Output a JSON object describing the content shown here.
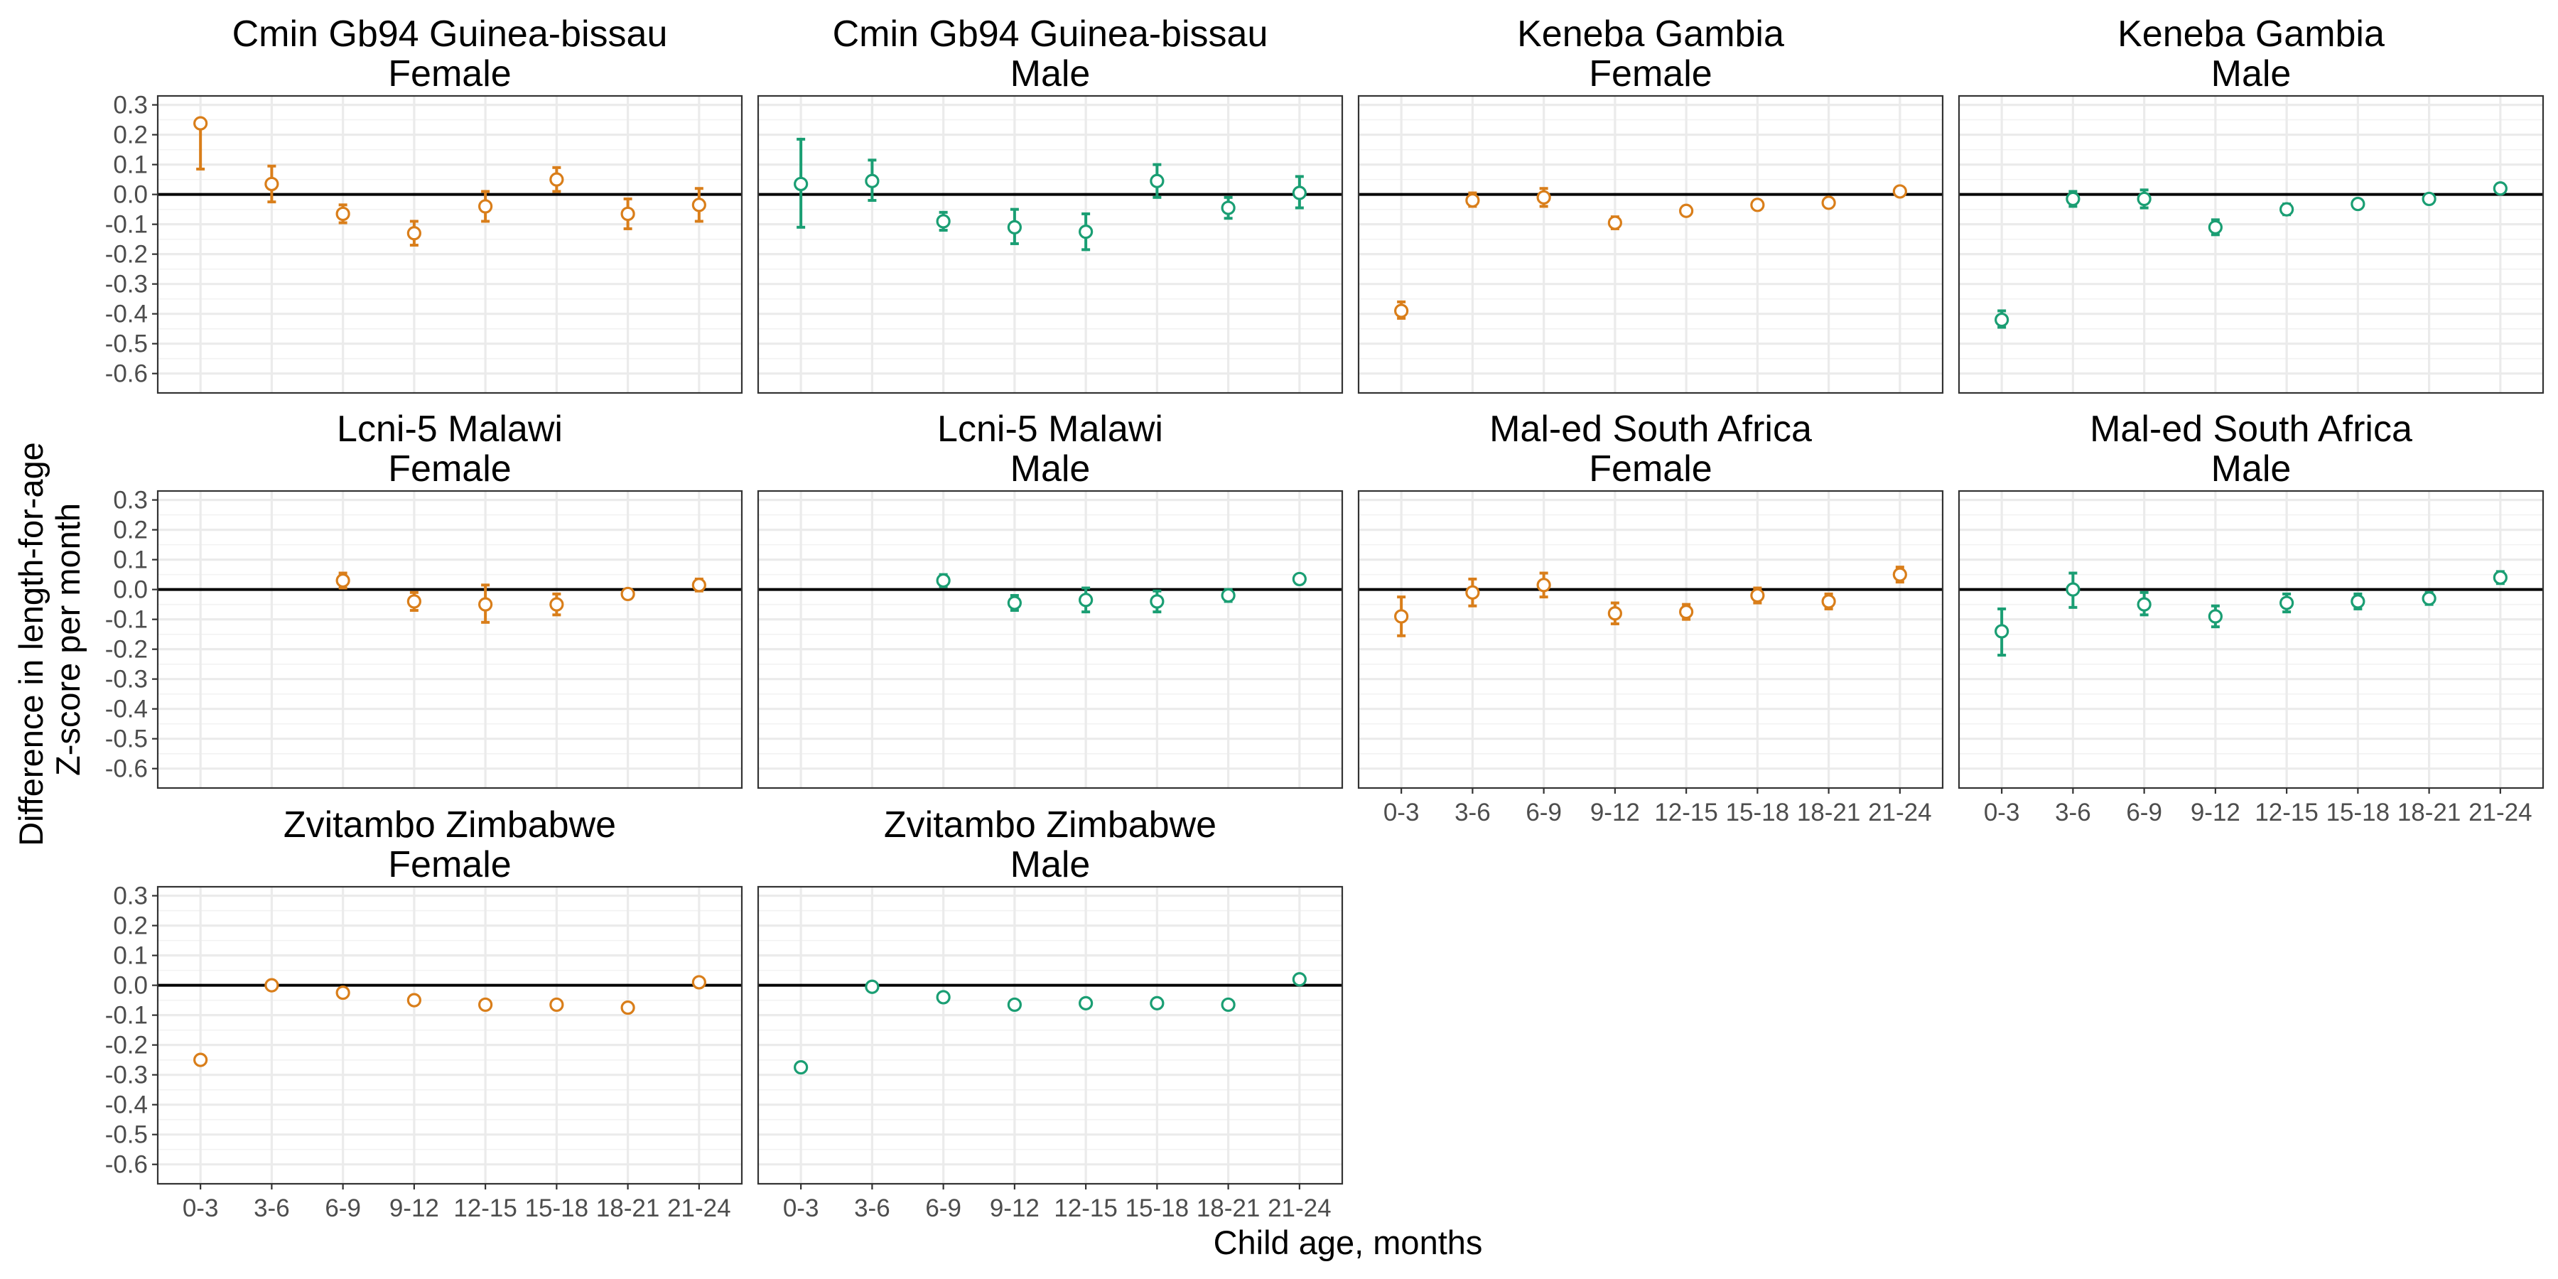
{
  "chart_data": {
    "type": "scatter",
    "subtype": "point-with-errorbars, faceted",
    "xlabel": "Child age, months",
    "ylabel_lines": [
      "Difference in length-for-age",
      "Z-score per month"
    ],
    "categories": [
      "0-3",
      "3-6",
      "6-9",
      "9-12",
      "12-15",
      "15-18",
      "18-21",
      "21-24"
    ],
    "y_ticks": [
      "0.3",
      "0.2",
      "0.1",
      "0.0",
      "-0.1",
      "-0.2",
      "-0.3",
      "-0.4",
      "-0.5",
      "-0.6"
    ],
    "y_tick_values": [
      0.3,
      0.2,
      0.1,
      0.0,
      -0.1,
      -0.2,
      -0.3,
      -0.4,
      -0.5,
      -0.6
    ],
    "ylim": [
      -0.665,
      0.33
    ],
    "reference_line": 0,
    "grid": true,
    "colors": {
      "female": "#D97E1A",
      "male": "#1A9E73"
    },
    "panels": [
      {
        "title": [
          "Cmin Gb94 Guinea-bissau",
          "Female"
        ],
        "sex": "female",
        "points": [
          {
            "x": "0-3",
            "y": 0.238,
            "lo": 0.085,
            "hi": 0.238
          },
          {
            "x": "3-6",
            "y": 0.035,
            "lo": -0.025,
            "hi": 0.095
          },
          {
            "x": "6-9",
            "y": -0.065,
            "lo": -0.095,
            "hi": -0.035
          },
          {
            "x": "9-12",
            "y": -0.13,
            "lo": -0.17,
            "hi": -0.09
          },
          {
            "x": "12-15",
            "y": -0.04,
            "lo": -0.09,
            "hi": 0.01
          },
          {
            "x": "15-18",
            "y": 0.05,
            "lo": 0.01,
            "hi": 0.09
          },
          {
            "x": "18-21",
            "y": -0.065,
            "lo": -0.115,
            "hi": -0.015
          },
          {
            "x": "21-24",
            "y": -0.035,
            "lo": -0.09,
            "hi": 0.02
          }
        ]
      },
      {
        "title": [
          "Cmin Gb94 Guinea-bissau",
          "Male"
        ],
        "sex": "male",
        "points": [
          {
            "x": "0-3",
            "y": 0.035,
            "lo": -0.11,
            "hi": 0.185
          },
          {
            "x": "3-6",
            "y": 0.045,
            "lo": -0.02,
            "hi": 0.115
          },
          {
            "x": "6-9",
            "y": -0.09,
            "lo": -0.12,
            "hi": -0.06
          },
          {
            "x": "9-12",
            "y": -0.11,
            "lo": -0.165,
            "hi": -0.05
          },
          {
            "x": "12-15",
            "y": -0.125,
            "lo": -0.185,
            "hi": -0.065
          },
          {
            "x": "15-18",
            "y": 0.045,
            "lo": -0.01,
            "hi": 0.1
          },
          {
            "x": "18-21",
            "y": -0.045,
            "lo": -0.08,
            "hi": -0.01
          },
          {
            "x": "21-24",
            "y": 0.005,
            "lo": -0.045,
            "hi": 0.06
          }
        ]
      },
      {
        "title": [
          "Keneba Gambia",
          "Female"
        ],
        "sex": "female",
        "points": [
          {
            "x": "0-3",
            "y": -0.39,
            "lo": -0.415,
            "hi": -0.36
          },
          {
            "x": "3-6",
            "y": -0.02,
            "lo": -0.04,
            "hi": 0.005
          },
          {
            "x": "6-9",
            "y": -0.01,
            "lo": -0.04,
            "hi": 0.02
          },
          {
            "x": "9-12",
            "y": -0.095,
            "lo": -0.115,
            "hi": -0.075
          },
          {
            "x": "12-15",
            "y": -0.055,
            "lo": -0.07,
            "hi": -0.04
          },
          {
            "x": "15-18",
            "y": -0.035,
            "lo": -0.048,
            "hi": -0.022
          },
          {
            "x": "18-21",
            "y": -0.028,
            "lo": -0.04,
            "hi": -0.016
          },
          {
            "x": "21-24",
            "y": 0.01,
            "lo": -0.003,
            "hi": 0.023
          }
        ]
      },
      {
        "title": [
          "Keneba Gambia",
          "Male"
        ],
        "sex": "male",
        "points": [
          {
            "x": "0-3",
            "y": -0.42,
            "lo": -0.445,
            "hi": -0.39
          },
          {
            "x": "3-6",
            "y": -0.015,
            "lo": -0.04,
            "hi": 0.01
          },
          {
            "x": "6-9",
            "y": -0.015,
            "lo": -0.045,
            "hi": 0.015
          },
          {
            "x": "9-12",
            "y": -0.11,
            "lo": -0.135,
            "hi": -0.085
          },
          {
            "x": "12-15",
            "y": -0.05,
            "lo": -0.068,
            "hi": -0.032
          },
          {
            "x": "15-18",
            "y": -0.032,
            "lo": -0.047,
            "hi": -0.017
          },
          {
            "x": "18-21",
            "y": -0.015,
            "lo": -0.028,
            "hi": -0.002
          },
          {
            "x": "21-24",
            "y": 0.02,
            "lo": 0.005,
            "hi": 0.035
          }
        ]
      },
      {
        "title": [
          "Lcni-5 Malawi",
          "Female"
        ],
        "sex": "female",
        "points": [
          {
            "x": "6-9",
            "y": 0.03,
            "lo": 0.005,
            "hi": 0.055
          },
          {
            "x": "9-12",
            "y": -0.04,
            "lo": -0.07,
            "hi": -0.01
          },
          {
            "x": "12-15",
            "y": -0.05,
            "lo": -0.11,
            "hi": 0.015
          },
          {
            "x": "15-18",
            "y": -0.05,
            "lo": -0.085,
            "hi": -0.015
          },
          {
            "x": "18-21",
            "y": -0.015,
            "lo": -0.03,
            "hi": 0.0
          },
          {
            "x": "21-24",
            "y": 0.015,
            "lo": -0.005,
            "hi": 0.035
          }
        ]
      },
      {
        "title": [
          "Lcni-5 Malawi",
          "Male"
        ],
        "sex": "male",
        "points": [
          {
            "x": "6-9",
            "y": 0.03,
            "lo": 0.01,
            "hi": 0.05
          },
          {
            "x": "9-12",
            "y": -0.045,
            "lo": -0.07,
            "hi": -0.02
          },
          {
            "x": "12-15",
            "y": -0.035,
            "lo": -0.075,
            "hi": 0.005
          },
          {
            "x": "15-18",
            "y": -0.04,
            "lo": -0.075,
            "hi": -0.005
          },
          {
            "x": "18-21",
            "y": -0.02,
            "lo": -0.04,
            "hi": 0.0
          },
          {
            "x": "21-24",
            "y": 0.035,
            "lo": 0.02,
            "hi": 0.05
          }
        ]
      },
      {
        "title": [
          "Mal-ed South Africa",
          "Female"
        ],
        "sex": "female",
        "points": [
          {
            "x": "0-3",
            "y": -0.09,
            "lo": -0.155,
            "hi": -0.025
          },
          {
            "x": "3-6",
            "y": -0.01,
            "lo": -0.055,
            "hi": 0.035
          },
          {
            "x": "6-9",
            "y": 0.015,
            "lo": -0.025,
            "hi": 0.055
          },
          {
            "x": "9-12",
            "y": -0.08,
            "lo": -0.115,
            "hi": -0.045
          },
          {
            "x": "12-15",
            "y": -0.075,
            "lo": -0.1,
            "hi": -0.05
          },
          {
            "x": "15-18",
            "y": -0.02,
            "lo": -0.045,
            "hi": 0.005
          },
          {
            "x": "18-21",
            "y": -0.04,
            "lo": -0.065,
            "hi": -0.015
          },
          {
            "x": "21-24",
            "y": 0.05,
            "lo": 0.025,
            "hi": 0.075
          }
        ]
      },
      {
        "title": [
          "Mal-ed South Africa",
          "Male"
        ],
        "sex": "male",
        "points": [
          {
            "x": "0-3",
            "y": -0.14,
            "lo": -0.22,
            "hi": -0.065
          },
          {
            "x": "3-6",
            "y": 0.0,
            "lo": -0.06,
            "hi": 0.055
          },
          {
            "x": "6-9",
            "y": -0.05,
            "lo": -0.085,
            "hi": -0.01
          },
          {
            "x": "9-12",
            "y": -0.09,
            "lo": -0.125,
            "hi": -0.055
          },
          {
            "x": "12-15",
            "y": -0.045,
            "lo": -0.075,
            "hi": -0.015
          },
          {
            "x": "15-18",
            "y": -0.04,
            "lo": -0.065,
            "hi": -0.015
          },
          {
            "x": "18-21",
            "y": -0.03,
            "lo": -0.05,
            "hi": -0.01
          },
          {
            "x": "21-24",
            "y": 0.04,
            "lo": 0.02,
            "hi": 0.06
          }
        ]
      },
      {
        "title": [
          "Zvitambo Zimbabwe",
          "Female"
        ],
        "sex": "female",
        "points": [
          {
            "x": "0-3",
            "y": -0.25,
            "lo": -0.262,
            "hi": -0.238
          },
          {
            "x": "3-6",
            "y": 0.0,
            "lo": -0.008,
            "hi": 0.008
          },
          {
            "x": "6-9",
            "y": -0.025,
            "lo": -0.035,
            "hi": -0.015
          },
          {
            "x": "9-12",
            "y": -0.05,
            "lo": -0.06,
            "hi": -0.04
          },
          {
            "x": "12-15",
            "y": -0.065,
            "lo": -0.075,
            "hi": -0.055
          },
          {
            "x": "15-18",
            "y": -0.065,
            "lo": -0.075,
            "hi": -0.055
          },
          {
            "x": "18-21",
            "y": -0.075,
            "lo": -0.085,
            "hi": -0.065
          },
          {
            "x": "21-24",
            "y": 0.01,
            "lo": 0.0,
            "hi": 0.02
          }
        ]
      },
      {
        "title": [
          "Zvitambo Zimbabwe",
          "Male"
        ],
        "sex": "male",
        "points": [
          {
            "x": "0-3",
            "y": -0.275,
            "lo": -0.287,
            "hi": -0.263
          },
          {
            "x": "3-6",
            "y": -0.005,
            "lo": -0.013,
            "hi": 0.003
          },
          {
            "x": "6-9",
            "y": -0.04,
            "lo": -0.05,
            "hi": -0.03
          },
          {
            "x": "9-12",
            "y": -0.065,
            "lo": -0.075,
            "hi": -0.055
          },
          {
            "x": "12-15",
            "y": -0.06,
            "lo": -0.07,
            "hi": -0.05
          },
          {
            "x": "15-18",
            "y": -0.06,
            "lo": -0.07,
            "hi": -0.05
          },
          {
            "x": "18-21",
            "y": -0.065,
            "lo": -0.075,
            "hi": -0.055
          },
          {
            "x": "21-24",
            "y": 0.02,
            "lo": 0.008,
            "hi": 0.032
          }
        ]
      }
    ]
  }
}
